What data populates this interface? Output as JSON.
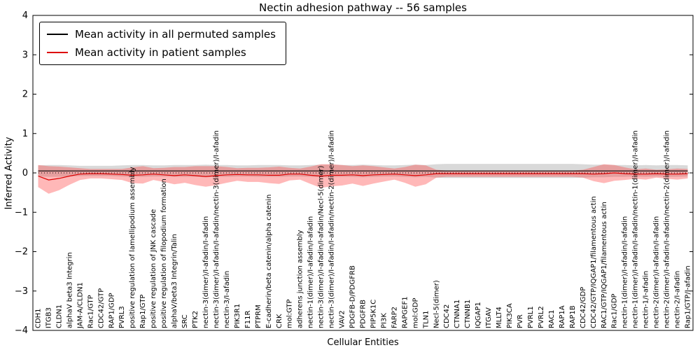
{
  "figure": {
    "title": "Nectin adhesion pathway -- 56 samples",
    "xlabel": "Cellular Entities",
    "ylabel": "Inferred Activity"
  },
  "legend": {
    "entries": [
      {
        "label": "Mean activity in all permuted samples",
        "color": "#000000"
      },
      {
        "label": "Mean activity in patient samples",
        "color": "#dd0000"
      }
    ]
  },
  "chart_data": {
    "type": "line",
    "title": "Nectin adhesion pathway -- 56 samples",
    "xlabel": "Cellular Entities",
    "ylabel": "Inferred Activity",
    "ylim": [
      -4,
      4
    ],
    "yticks": [
      4,
      3,
      2,
      1,
      0,
      -1,
      -2,
      -3,
      -4
    ],
    "grid": false,
    "legend_position": "upper left",
    "zero_line": {
      "style": "dotted",
      "color": "#000000",
      "y": 0
    },
    "categories": [
      "CDH1",
      "ITGB3",
      "CLDN1",
      "alphaV beta3 Integrin",
      "JAM-A/CLDN1",
      "Rac1/GTP",
      "CDC42/GTP",
      "RAP1/GDP",
      "PVRL3",
      "positive regulation of lamellipodium assembly",
      "Rap1/GTP",
      "positive regulation of JNK cascade",
      "positive regulation of filopodium formation",
      "alphaV/beta3 Integrin/Talin",
      "SRC",
      "PTK2",
      "nectin-3(dimer)/I-afadin/I-afadin",
      "nectin-3(dimer)/I-afadin/I-afadin/nectin-3(dimer)/I-afadin",
      "nectin-3/I-afadin",
      "PIK3R1",
      "F11R",
      "PTPRM",
      "E-cadherin/beta catenin/alpha catenin",
      "CRK",
      "mol:GTP",
      "adherens junction assembly",
      "nectin-1(dimer)/I-afadin/I-afadin",
      "nectin-3(dimer)/I-afadin/I-afadin/Necl-5(dimer)",
      "nectin-3(dimer)/I-afadin/I-afadin/nectin-2(dimer)/I-afadin",
      "VAV2",
      "PDGFB-D/PDGFRB",
      "PDGFRB",
      "PIP5K1C",
      "PI3K",
      "FARP2",
      "RAPGEF1",
      "mol:GDP",
      "TLN1",
      "Necl-5(dimer)",
      "CDC42",
      "CTNNA1",
      "CTNNB1",
      "IQGAP1",
      "ITGAV",
      "MLLT4",
      "PIK3CA",
      "PVR",
      "PVRL1",
      "PVRL2",
      "RAC1",
      "RAP1A",
      "RAP1B",
      "CDC42/GDP",
      "CDC42/GTP/IQGAP1/filamentous actin",
      "RAC1/GTP/IQGAP1/filamentous actin",
      "Rac1/GDP",
      "nectin-1(dimer)/I-afadin/I-afadin",
      "nectin-1(dimer)/I-afadin/I-afadin/nectin-1(dimer)/I-afadin",
      "nectin-1/I-afadin",
      "nectin-2(dimer)/I-afadin/I-afadin",
      "nectin-2(dimer)/I-afadin/I-afadin/nectin-2(dimer)/I-afadin",
      "nectin-2/I-afadin",
      "Rap1/GTP/I-afadin"
    ],
    "series": [
      {
        "name": "Mean activity in all permuted samples",
        "color": "#000000",
        "band_color": "#aaaaaa",
        "band_opacity": 0.45,
        "mean": 0.05,
        "half_width": [
          0.14,
          0.15,
          0.15,
          0.14,
          0.13,
          0.13,
          0.13,
          0.13,
          0.14,
          0.15,
          0.15,
          0.14,
          0.14,
          0.15,
          0.15,
          0.15,
          0.16,
          0.15,
          0.15,
          0.14,
          0.14,
          0.15,
          0.15,
          0.15,
          0.14,
          0.14,
          0.15,
          0.16,
          0.16,
          0.15,
          0.15,
          0.16,
          0.15,
          0.14,
          0.14,
          0.15,
          0.16,
          0.15,
          0.17,
          0.18,
          0.18,
          0.18,
          0.18,
          0.18,
          0.18,
          0.18,
          0.18,
          0.18,
          0.18,
          0.18,
          0.18,
          0.18,
          0.17,
          0.16,
          0.16,
          0.15,
          0.15,
          0.14,
          0.15,
          0.14,
          0.15,
          0.15,
          0.14
        ]
      },
      {
        "name": "Mean activity in patient samples",
        "color": "#dd0000",
        "band_color": "#ff3333",
        "band_opacity": 0.35,
        "mean": [
          -0.08,
          -0.18,
          -0.14,
          -0.08,
          -0.03,
          -0.02,
          -0.02,
          -0.03,
          -0.04,
          -0.06,
          -0.05,
          -0.03,
          -0.05,
          -0.07,
          -0.05,
          -0.07,
          -0.09,
          -0.07,
          -0.05,
          -0.04,
          -0.05,
          -0.05,
          -0.06,
          -0.06,
          -0.03,
          -0.03,
          -0.06,
          -0.08,
          -0.06,
          -0.06,
          -0.05,
          -0.07,
          -0.05,
          -0.04,
          -0.03,
          -0.05,
          -0.07,
          -0.05,
          -0.02,
          -0.02,
          -0.02,
          -0.02,
          -0.02,
          -0.02,
          -0.02,
          -0.02,
          -0.02,
          -0.02,
          -0.02,
          -0.02,
          -0.02,
          -0.02,
          -0.02,
          -0.03,
          -0.02,
          0.0,
          -0.02,
          -0.03,
          -0.03,
          -0.02,
          -0.03,
          -0.03,
          -0.02
        ],
        "half_width": [
          0.28,
          0.35,
          0.3,
          0.22,
          0.15,
          0.12,
          0.12,
          0.13,
          0.14,
          0.2,
          0.22,
          0.15,
          0.18,
          0.22,
          0.2,
          0.24,
          0.26,
          0.24,
          0.2,
          0.16,
          0.18,
          0.18,
          0.2,
          0.22,
          0.16,
          0.14,
          0.22,
          0.3,
          0.28,
          0.26,
          0.22,
          0.26,
          0.22,
          0.18,
          0.14,
          0.2,
          0.28,
          0.24,
          0.1,
          0.08,
          0.08,
          0.08,
          0.08,
          0.08,
          0.08,
          0.08,
          0.08,
          0.08,
          0.08,
          0.08,
          0.08,
          0.08,
          0.1,
          0.18,
          0.24,
          0.2,
          0.16,
          0.12,
          0.14,
          0.1,
          0.12,
          0.14,
          0.12
        ]
      }
    ]
  }
}
